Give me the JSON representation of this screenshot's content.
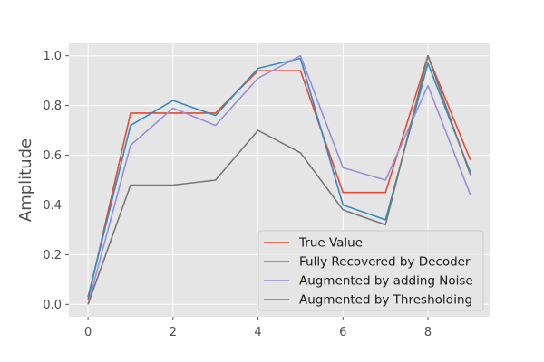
{
  "chart_data": {
    "type": "line",
    "title": "",
    "xlabel": "",
    "ylabel": "Amplitude",
    "x": [
      0,
      1,
      2,
      3,
      4,
      5,
      6,
      7,
      8,
      9
    ],
    "xlim": [
      -0.45,
      9.45
    ],
    "ylim": [
      -0.05,
      1.05
    ],
    "xticks": [
      0,
      2,
      4,
      6,
      8
    ],
    "yticks": [
      0.0,
      0.2,
      0.4,
      0.6,
      0.8,
      1.0
    ],
    "xtick_labels": [
      "0",
      "2",
      "4",
      "6",
      "8"
    ],
    "ytick_labels": [
      "0.0",
      "0.2",
      "0.4",
      "0.6",
      "0.8",
      "1.0"
    ],
    "grid": true,
    "legend_position": "lower-right",
    "series": [
      {
        "name": "True Value",
        "color": "#E24A33",
        "values": [
          0.02,
          0.77,
          0.77,
          0.77,
          0.94,
          0.94,
          0.45,
          0.45,
          1.0,
          0.58
        ]
      },
      {
        "name": "Fully Recovered by Decoder",
        "color": "#348ABD",
        "values": [
          0.03,
          0.72,
          0.82,
          0.76,
          0.95,
          0.99,
          0.4,
          0.34,
          0.97,
          0.53
        ]
      },
      {
        "name": "Augmented by adding Noise",
        "color": "#988ED5",
        "values": [
          0.0,
          0.64,
          0.79,
          0.72,
          0.91,
          1.0,
          0.55,
          0.5,
          0.88,
          0.44
        ]
      },
      {
        "name": "Augmented by Thresholding",
        "color": "#777777",
        "values": [
          0.0,
          0.48,
          0.48,
          0.5,
          0.7,
          0.61,
          0.38,
          0.32,
          1.0,
          0.52
        ]
      }
    ]
  }
}
